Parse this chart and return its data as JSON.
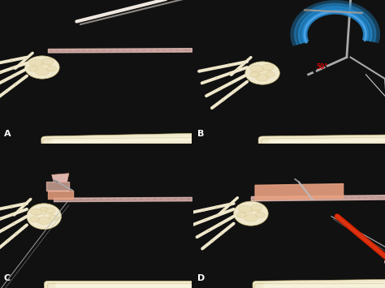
{
  "fig_width": 4.74,
  "fig_height": 3.55,
  "dpi": 100,
  "bg_color": "#111111",
  "separator_color": "#000000",
  "bone_color": "#f0e8cc",
  "bone_shadow": "#c8b878",
  "bone_mid": "#e8dab0",
  "tendon_pink": "#f5c8c0",
  "tendon_orange": "#e8a080",
  "dark_bg": "#0d0d0d",
  "label_color": "white",
  "label_fontsize": 8,
  "panel_labels": [
    "A",
    "B",
    "C",
    "D"
  ],
  "angle_label_color": "#cc0000",
  "blue_tool": "#2288cc",
  "blue_tool_light": "#55aaee",
  "metal_color": "#aaaaaa",
  "red_cable": "#cc2200",
  "wire_color": "#cccccc"
}
